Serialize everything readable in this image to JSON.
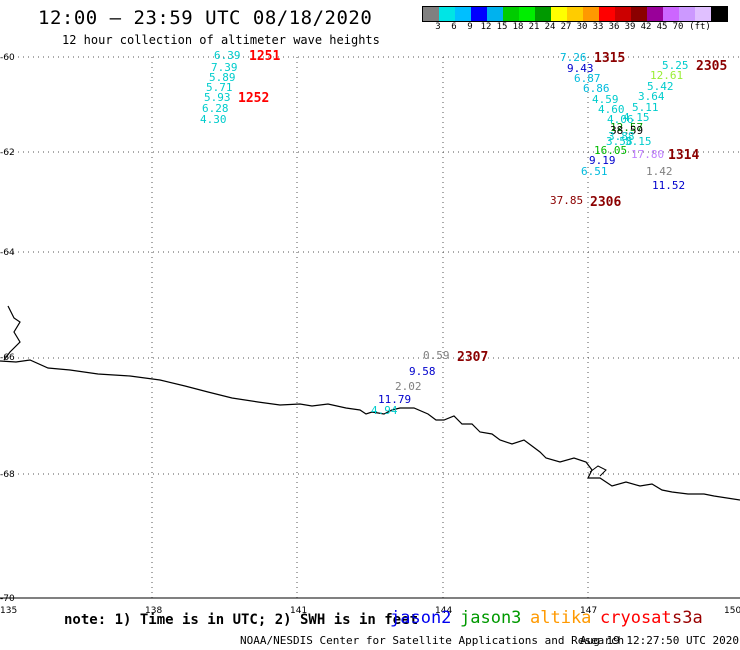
{
  "header": {
    "title": "12:00 – 23:59 UTC 08/18/2020",
    "subtitle": "12 hour collection of altimeter wave heights"
  },
  "colorbar": {
    "colors": [
      "#808080",
      "#00e5e5",
      "#00bfff",
      "#0000ff",
      "#00b2ee",
      "#00cc00",
      "#00ee00",
      "#009900",
      "#ffff00",
      "#ffcc00",
      "#ff9900",
      "#ff0000",
      "#cc0000",
      "#8b0000",
      "#990099",
      "#cc66ff",
      "#cc99ff",
      "#e0c0ff",
      "#000000"
    ],
    "labels": [
      "3",
      "6",
      "9",
      "12",
      "15",
      "18",
      "21",
      "24",
      "27",
      "30",
      "33",
      "36",
      "39",
      "42",
      "45",
      "70",
      "(ft)"
    ]
  },
  "map": {
    "lat_labels": [
      "-60",
      "-62",
      "-64",
      "-66",
      "-68",
      "-70"
    ],
    "lon_labels": [
      "135",
      "138",
      "141",
      "144",
      "147",
      "150"
    ],
    "measurements": [
      {
        "text": "6.39",
        "color": "#00cccc"
      },
      {
        "text": "7.39",
        "color": "#00cccc"
      },
      {
        "text": "5.89",
        "color": "#00cccc"
      },
      {
        "text": "5.71",
        "color": "#00cccc"
      },
      {
        "text": "5.93",
        "color": "#00cccc"
      },
      {
        "text": "6.28",
        "color": "#00cccc"
      },
      {
        "text": "4.30",
        "color": "#00cccc"
      },
      {
        "text": "7.26",
        "color": "#00bbdd"
      },
      {
        "text": "9.43",
        "color": "#0000cc"
      },
      {
        "text": "6.87",
        "color": "#00bbdd"
      },
      {
        "text": "6.86",
        "color": "#00bbdd"
      },
      {
        "text": "4.59",
        "color": "#00cccc"
      },
      {
        "text": "4.60",
        "color": "#00cccc"
      },
      {
        "text": "4.06",
        "color": "#00cccc"
      },
      {
        "text": "5.11",
        "color": "#00cccc"
      },
      {
        "text": "4.15",
        "color": "#00cccc"
      },
      {
        "text": "12.57",
        "color": "#009900"
      },
      {
        "text": "38.59",
        "color": "#000000"
      },
      {
        "text": "3.88",
        "color": "#00cccc"
      },
      {
        "text": "3.58",
        "color": "#00cccc"
      },
      {
        "text": "5.15",
        "color": "#00cccc"
      },
      {
        "text": "16.05",
        "color": "#00bb00"
      },
      {
        "text": "17.80",
        "color": "#c080ff"
      },
      {
        "text": "9.19",
        "color": "#0000cc"
      },
      {
        "text": "6.51",
        "color": "#00bbdd"
      },
      {
        "text": "1.42",
        "color": "#808080"
      },
      {
        "text": "11.52",
        "color": "#0000cc"
      },
      {
        "text": "37.85",
        "color": "#8b0000"
      },
      {
        "text": "5.25",
        "color": "#00cccc"
      },
      {
        "text": "12.61",
        "color": "#99ee33"
      },
      {
        "text": "5.42",
        "color": "#00cccc"
      },
      {
        "text": "3.64",
        "color": "#00cccc"
      },
      {
        "text": "0.59",
        "color": "#808080"
      },
      {
        "text": "9.58",
        "color": "#0000cc"
      },
      {
        "text": "2.02",
        "color": "#808080"
      },
      {
        "text": "11.79",
        "color": "#0000cc"
      },
      {
        "text": "4.94",
        "color": "#00cccc"
      }
    ],
    "hour_labels": [
      {
        "text": "1251",
        "color": "#ff0000"
      },
      {
        "text": "1252",
        "color": "#ff0000"
      },
      {
        "text": "1315",
        "color": "#8b0000"
      },
      {
        "text": "2305",
        "color": "#8b0000"
      },
      {
        "text": "1314",
        "color": "#8b0000"
      },
      {
        "text": "2306",
        "color": "#8b0000"
      },
      {
        "text": "2307",
        "color": "#8b0000"
      }
    ]
  },
  "footer": {
    "note": "note: 1) Time is in UTC; 2) SWH is in feet",
    "satellites": [
      {
        "text": "jason2",
        "color": "#0000ee"
      },
      {
        "text": "jason3",
        "color": "#009900"
      },
      {
        "text": "altika",
        "color": "#ff9900"
      },
      {
        "text": "cryosat",
        "color": "#ff0000"
      },
      {
        "text": "s3a",
        "color": "#990000"
      }
    ],
    "credit": "NOAA/NESDIS Center for Satellite Applications and Research",
    "timestamp": "Aug 19 12:27:50 UTC 2020"
  }
}
